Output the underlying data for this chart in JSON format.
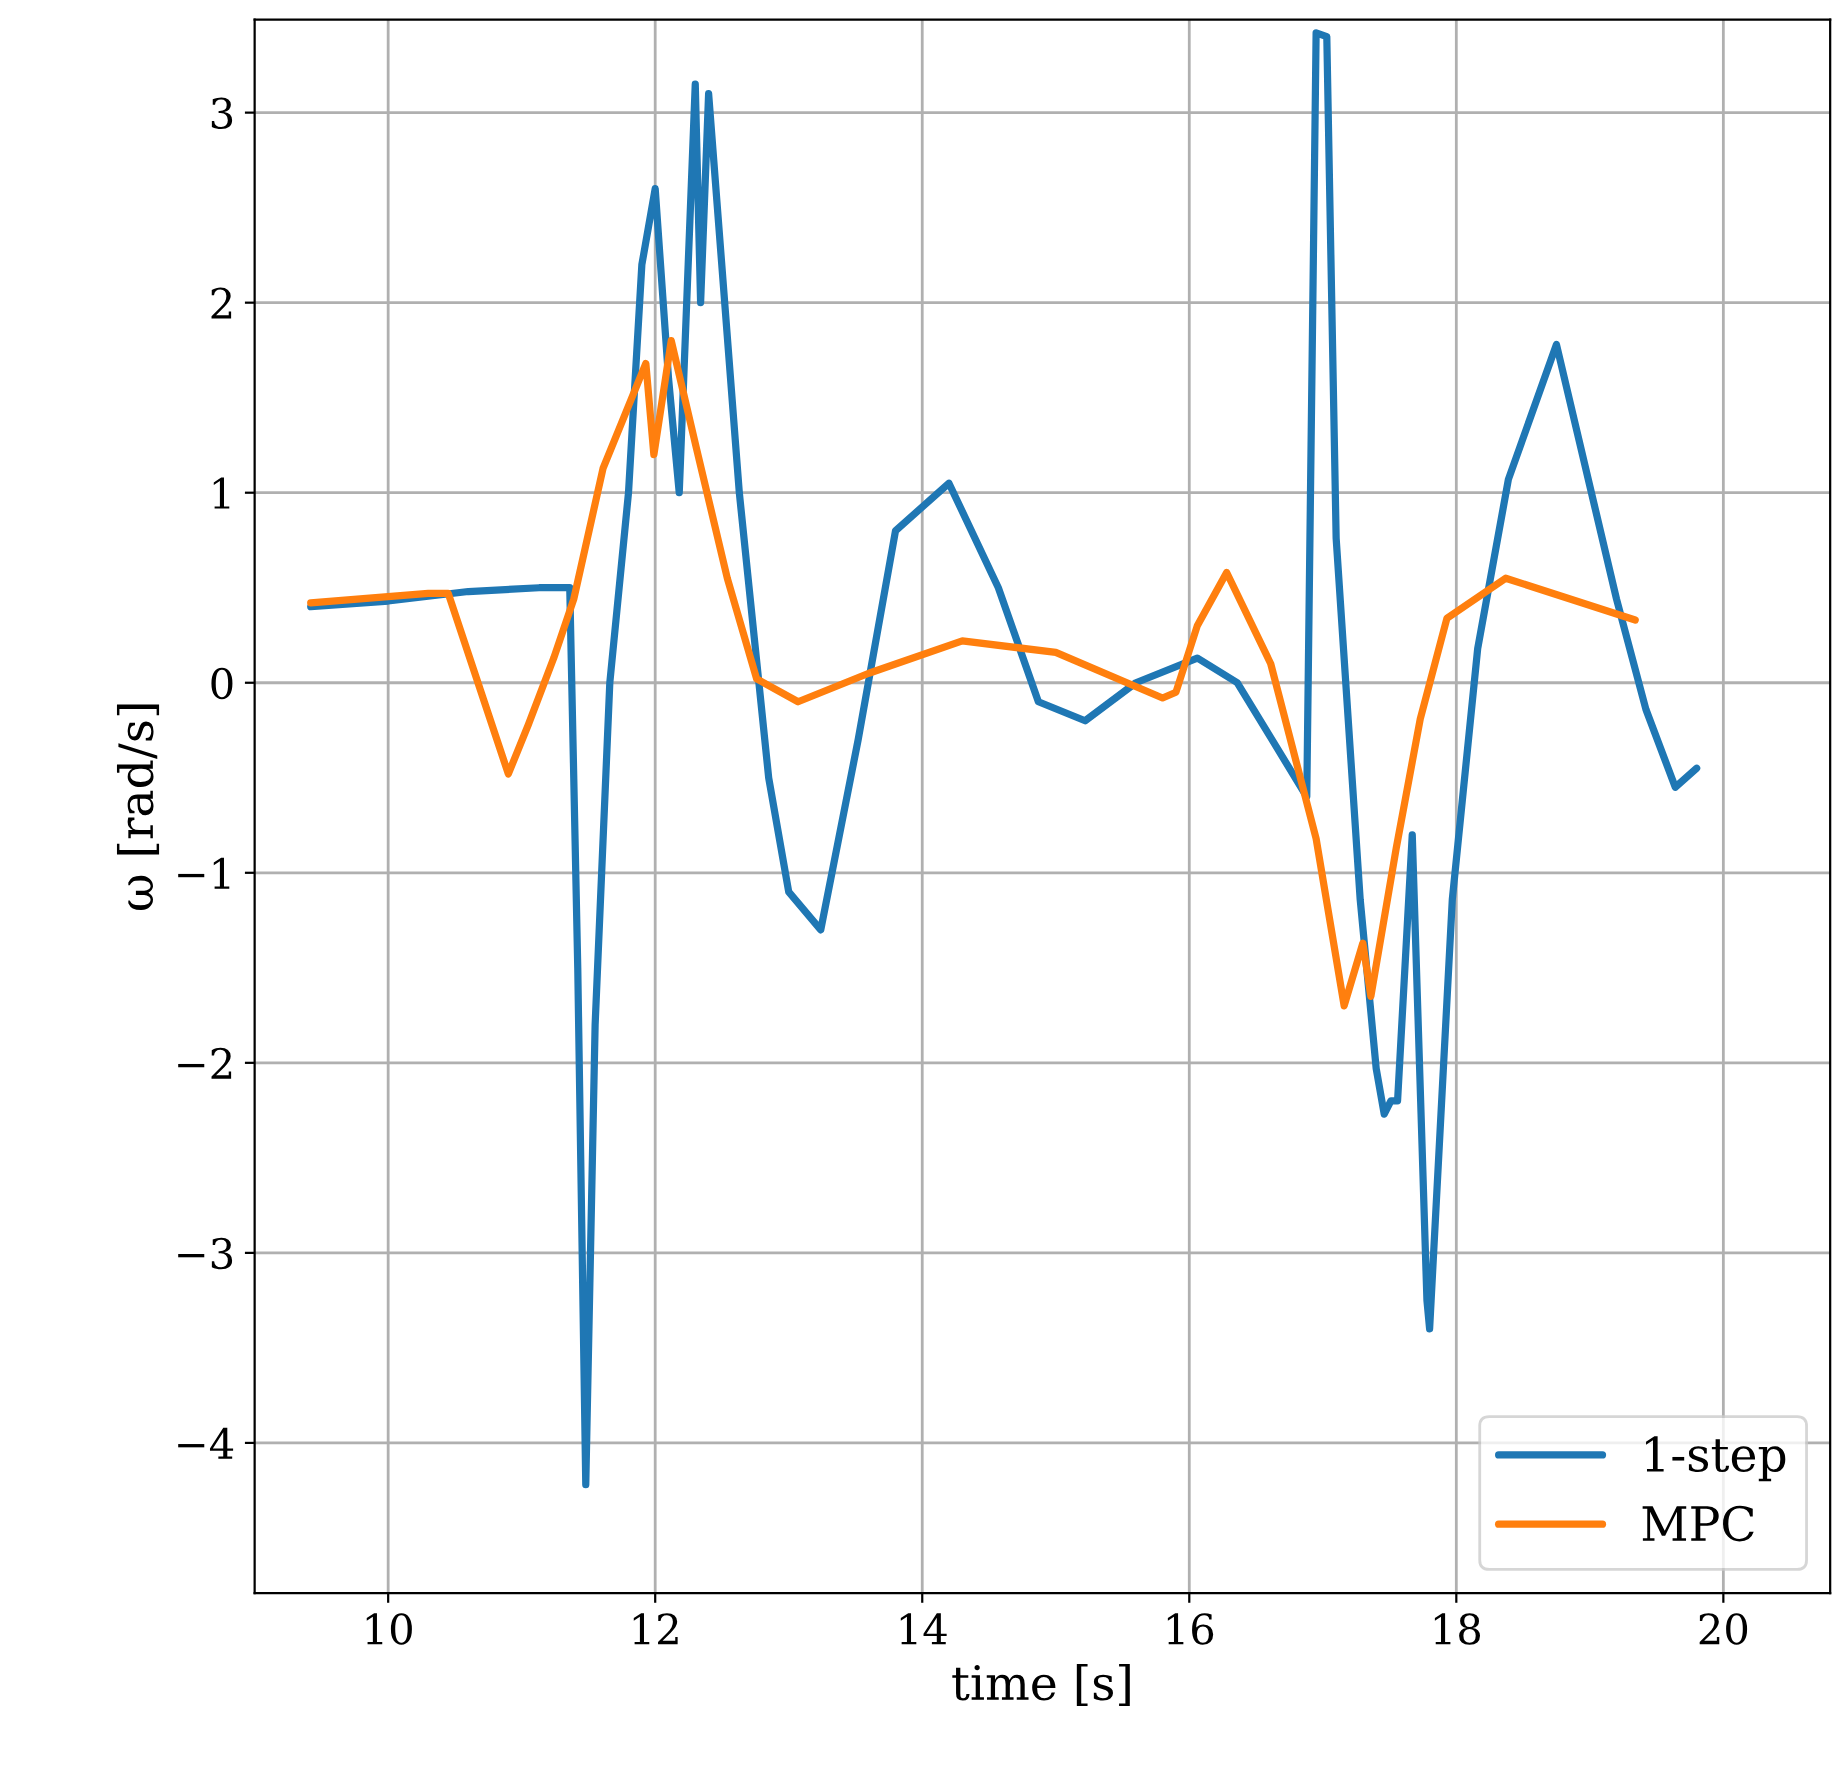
{
  "chart_data": {
    "type": "line",
    "xlabel": "time [s]",
    "ylabel": "ω [rad/s]",
    "xlim": [
      9.0,
      20.8
    ],
    "ylim": [
      -4.79,
      3.49
    ],
    "xticks": [
      10,
      12,
      14,
      16,
      18,
      20
    ],
    "yticks": [
      -4,
      -3,
      -2,
      -1,
      0,
      1,
      2,
      3
    ],
    "grid": true,
    "legend": "bottom right",
    "line_style": "solid",
    "marker": "none",
    "series": [
      {
        "name": "1-step",
        "color": "#1f77b4",
        "x": [
          9.42,
          10.0,
          10.6,
          11.13,
          11.36,
          11.42,
          11.48,
          11.55,
          11.66,
          11.8,
          11.9,
          12.0,
          12.1,
          12.18,
          12.3,
          12.34,
          12.4,
          12.63,
          12.85,
          13.0,
          13.24,
          13.52,
          13.8,
          14.2,
          14.57,
          14.87,
          15.22,
          15.6,
          16.06,
          16.36,
          16.88,
          16.95,
          17.03,
          17.1,
          17.28,
          17.4,
          17.46,
          17.51,
          17.56,
          17.67,
          17.78,
          17.8,
          17.97,
          18.16,
          18.39,
          18.75,
          19.2,
          19.42,
          19.64,
          19.8
        ],
        "values": [
          0.4,
          0.43,
          0.48,
          0.5,
          0.5,
          -1.5,
          -4.22,
          -1.8,
          0.0,
          1.0,
          2.2,
          2.6,
          1.6,
          1.0,
          3.15,
          2.0,
          3.1,
          1.0,
          -0.5,
          -1.1,
          -1.3,
          -0.3,
          0.8,
          1.05,
          0.5,
          -0.1,
          -0.2,
          0.0,
          0.13,
          0.0,
          -0.6,
          3.42,
          3.4,
          0.76,
          -1.14,
          -2.03,
          -2.27,
          -2.2,
          -2.2,
          -0.8,
          -3.25,
          -3.4,
          -1.14,
          0.18,
          1.07,
          1.78,
          0.44,
          -0.14,
          -0.55,
          -0.45
        ]
      },
      {
        "name": "MPC",
        "color": "#ff7f0e",
        "x": [
          9.42,
          10.3,
          10.45,
          10.9,
          11.05,
          11.24,
          11.39,
          11.61,
          11.93,
          11.99,
          12.12,
          12.31,
          12.54,
          12.76,
          13.07,
          13.6,
          14.3,
          15.0,
          15.8,
          15.9,
          16.06,
          16.28,
          16.61,
          16.95,
          17.16,
          17.3,
          17.36,
          17.55,
          17.73,
          17.93,
          18.37,
          19.34
        ],
        "values": [
          0.42,
          0.47,
          0.47,
          -0.48,
          -0.22,
          0.13,
          0.44,
          1.13,
          1.68,
          1.2,
          1.8,
          1.23,
          0.55,
          0.02,
          -0.1,
          0.05,
          0.22,
          0.16,
          -0.08,
          -0.05,
          0.3,
          0.58,
          0.1,
          -0.82,
          -1.7,
          -1.37,
          -1.65,
          -0.87,
          -0.19,
          0.34,
          0.55,
          0.33
        ]
      }
    ]
  }
}
